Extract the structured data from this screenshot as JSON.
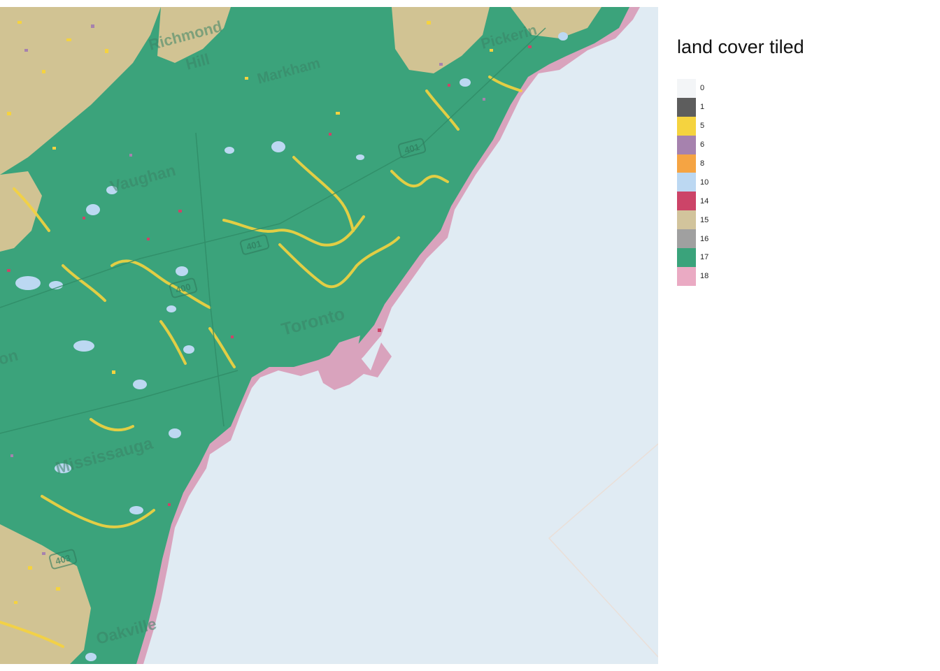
{
  "legend": {
    "title": "land cover tiled",
    "items": [
      {
        "label": "0",
        "color": "#f3f5f7"
      },
      {
        "label": "1",
        "color": "#5d5d5d"
      },
      {
        "label": "5",
        "color": "#f5d33f"
      },
      {
        "label": "6",
        "color": "#a682ae"
      },
      {
        "label": "8",
        "color": "#f5a443"
      },
      {
        "label": "10",
        "color": "#bcd8f2"
      },
      {
        "label": "14",
        "color": "#cc4468"
      },
      {
        "label": "15",
        "color": "#d2c49c"
      },
      {
        "label": "16",
        "color": "#a0a0a0"
      },
      {
        "label": "17",
        "color": "#3aa37b"
      },
      {
        "label": "18",
        "color": "#eaaac3"
      }
    ]
  },
  "map": {
    "water_color": "#e0ebf3",
    "place_labels": {
      "richmond_hill": "Richmond",
      "richmond_hill_2": "Hill",
      "markham": "Markham",
      "vaughan": "Vaughan",
      "toronto": "Toronto",
      "mississauga": "Mississauga",
      "brampton": "on",
      "oakville": "Oakville",
      "pickering": "Pickerin"
    },
    "highway_shields": {
      "h401_a": "401",
      "h401_b": "401",
      "h400": "400",
      "h403": "403"
    }
  }
}
